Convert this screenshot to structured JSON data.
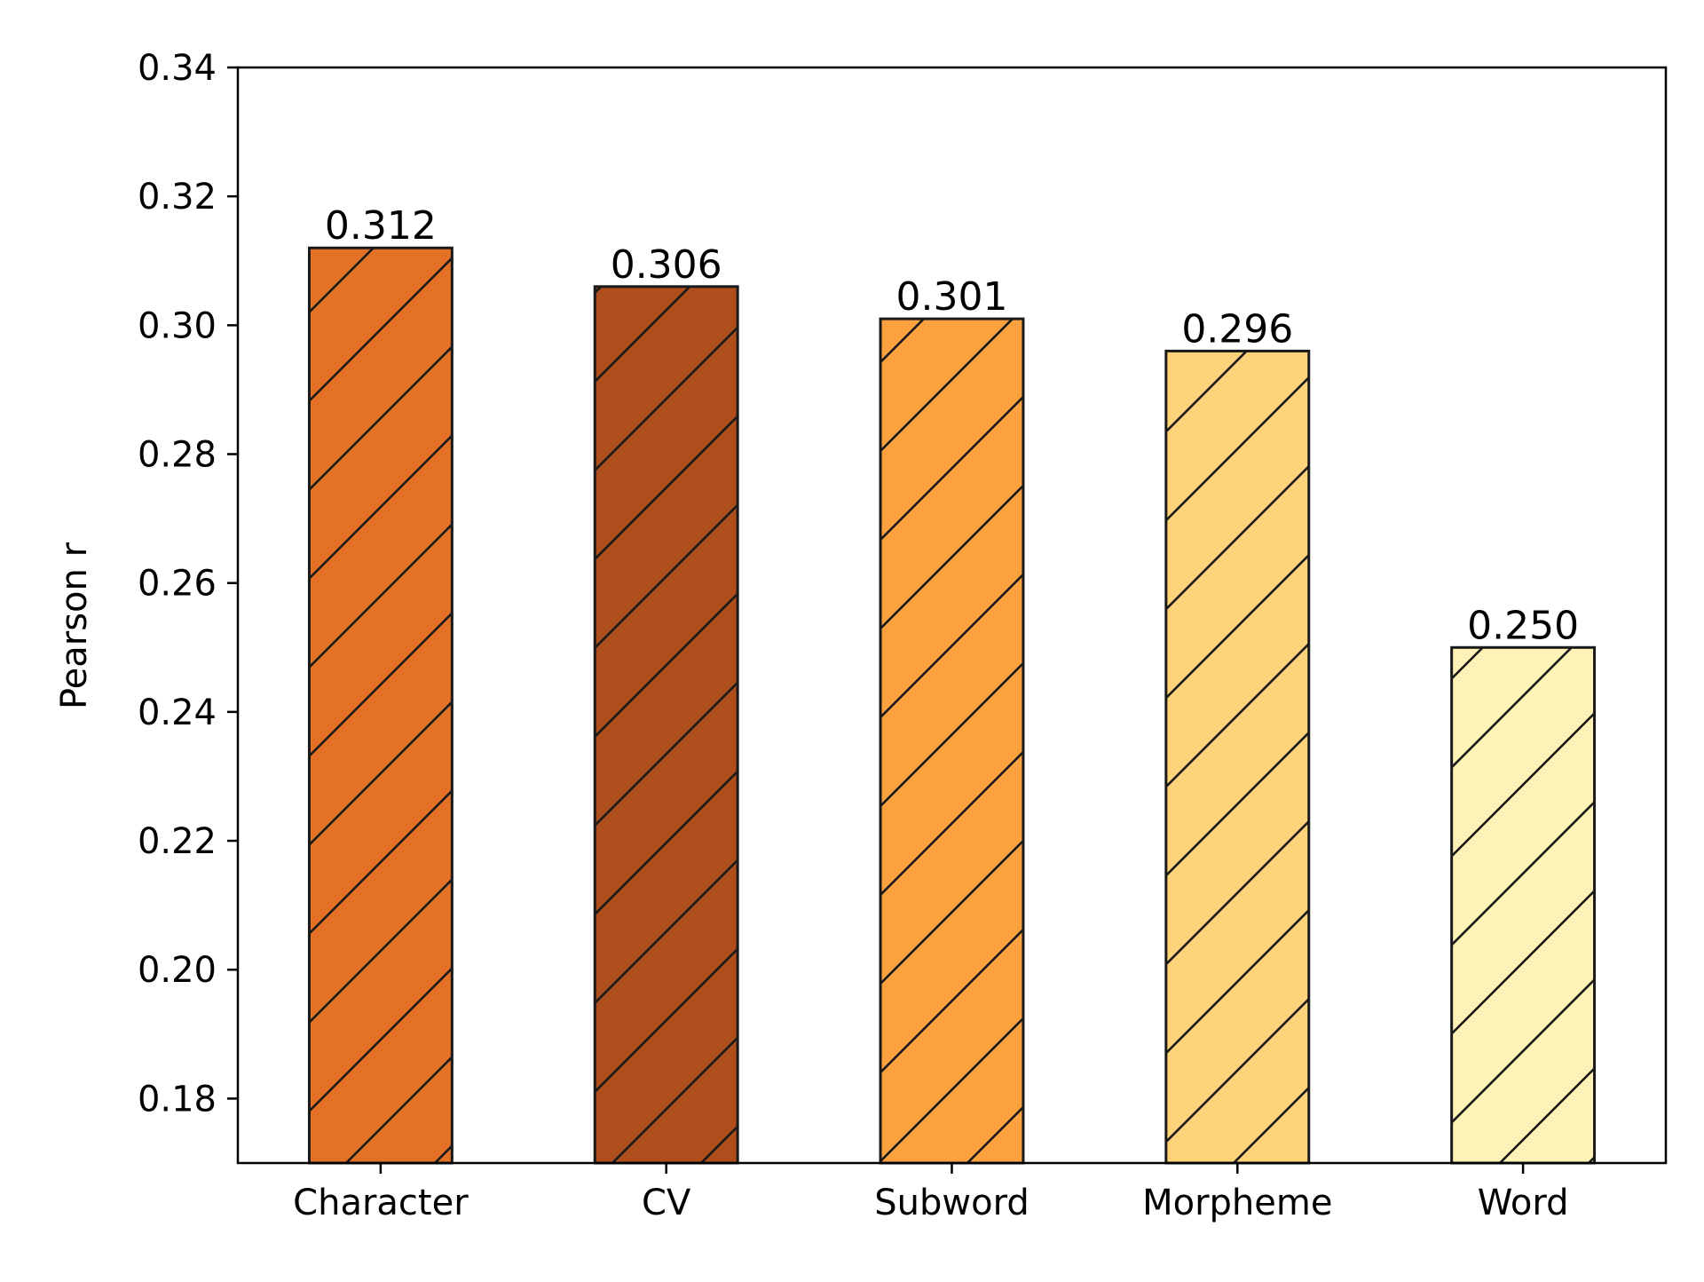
{
  "chart_data": {
    "type": "bar",
    "title": "",
    "xlabel": "",
    "ylabel": "Pearson r",
    "categories": [
      "Character",
      "CV",
      "Subword",
      "Morpheme",
      "Word"
    ],
    "values": [
      0.312,
      0.306,
      0.301,
      0.296,
      0.25
    ],
    "value_labels": [
      "0.312",
      "0.306",
      "0.301",
      "0.296",
      "0.250"
    ],
    "colors": [
      "#e37227",
      "#ad4e1c",
      "#fba13f",
      "#fdd37a",
      "#fef2b7"
    ],
    "hatch": "diagonal",
    "ylim": [
      0.17,
      0.34
    ],
    "yticks": [
      0.18,
      0.2,
      0.22,
      0.24,
      0.26,
      0.28,
      0.3,
      0.32,
      0.34
    ],
    "ytick_labels": [
      "0.18",
      "0.20",
      "0.22",
      "0.24",
      "0.26",
      "0.28",
      "0.30",
      "0.32",
      "0.34"
    ],
    "grid": false,
    "legend": "none"
  }
}
